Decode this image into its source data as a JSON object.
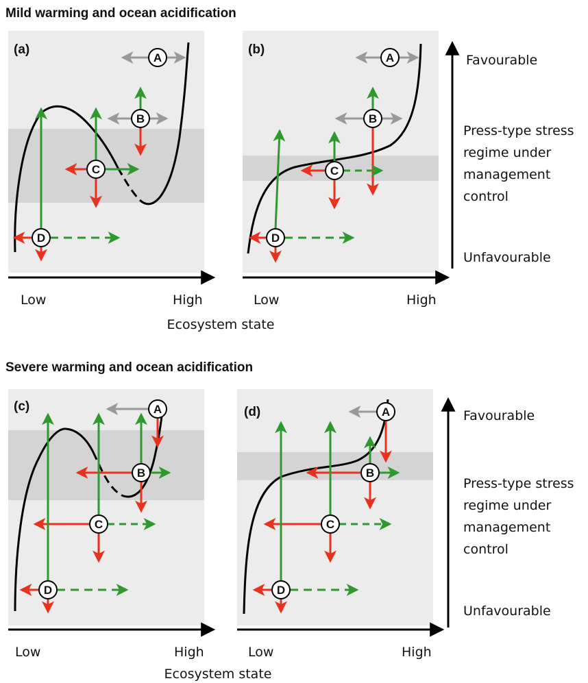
{
  "sections": [
    {
      "title": "Mild warming and ocean acidification"
    },
    {
      "title": "Severe warming and ocean acidification"
    }
  ],
  "panels": [
    {
      "label": "(a)",
      "x_low": "Low",
      "x_high": "High"
    },
    {
      "label": "(b)",
      "x_low": "Low",
      "x_high": "High"
    },
    {
      "label": "(c)",
      "x_low": "Low",
      "x_high": "High"
    },
    {
      "label": "(d)",
      "x_low": "Low",
      "x_high": "High"
    }
  ],
  "x_axis_title": "Ecosystem state",
  "y_axis": {
    "top": "Favourable",
    "middle": [
      "Press-type stress",
      "regime under",
      "management",
      "control"
    ],
    "bottom": "Unfavourable"
  },
  "nodes": [
    "A",
    "B",
    "C",
    "D"
  ],
  "colors": {
    "panel_bg": "#ececec",
    "band": "#d4d4d4",
    "green": "#2e9a2e",
    "red": "#e8321e",
    "gray": "#999999",
    "curve": "#000000"
  }
}
